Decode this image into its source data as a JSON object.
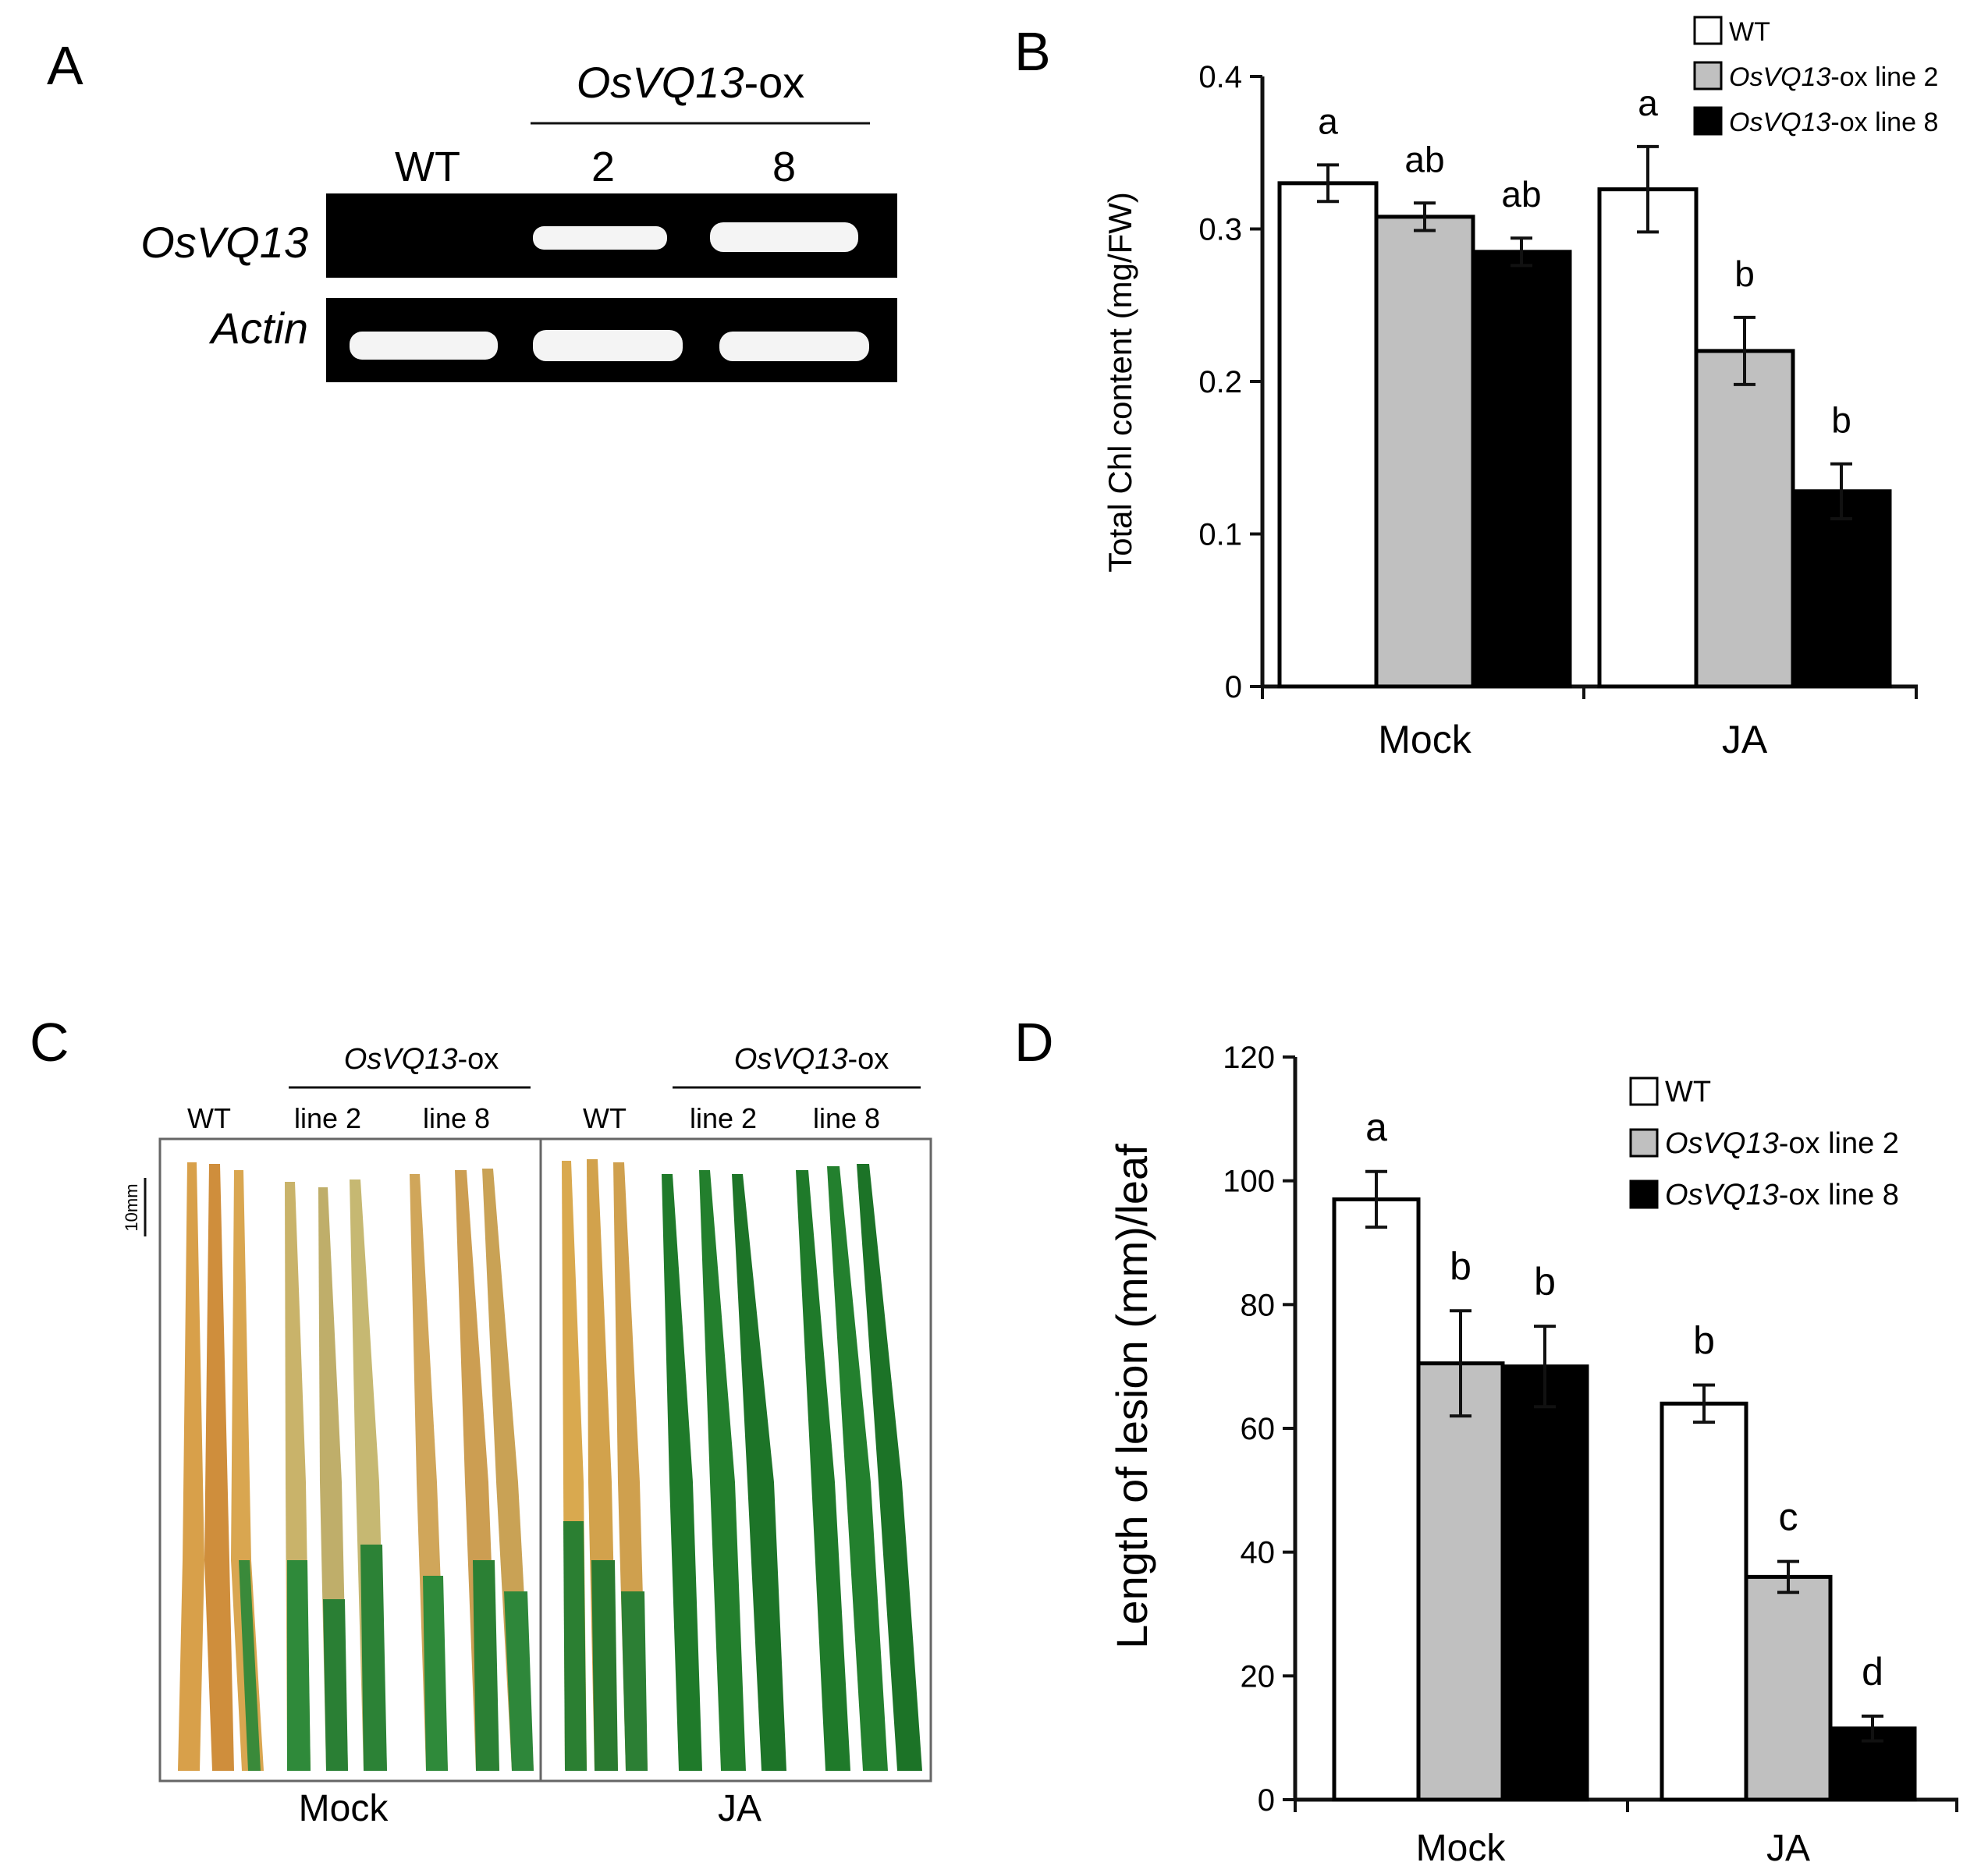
{
  "panels": {
    "A": {
      "label": "A",
      "group_label_italic": "OsVQ13",
      "group_label_suffix": "-ox",
      "lane_labels": [
        "WT",
        "2",
        "8"
      ],
      "row_labels": [
        "OsVQ13",
        "Actin"
      ]
    },
    "C": {
      "label": "C",
      "group_label_italic": "OsVQ13",
      "group_label_suffix": "-ox",
      "lane_labels_left": [
        "WT",
        "line 2",
        "line 8"
      ],
      "lane_labels_right": [
        "WT",
        "line 2",
        "line 8"
      ],
      "scale_label": "10mm",
      "bottom_labels": [
        "Mock",
        "JA"
      ]
    }
  },
  "colors": {
    "wt": "#ffffff",
    "line2": "#c0c0c0",
    "line8": "#000000",
    "gel_bg": "#000000",
    "band": "#f4f4f4",
    "leaf_green": "#1f7a2a",
    "leaf_yellow": "#d8a04a"
  },
  "chart_data": [
    {
      "panel": "B",
      "type": "bar",
      "categories": [
        "Mock",
        "JA"
      ],
      "series": [
        {
          "name": "WT",
          "name_italic": "",
          "name_suffix": "WT",
          "values": [
            0.33,
            0.326
          ],
          "errors": [
            0.012,
            0.028
          ],
          "letters": [
            "a",
            "a"
          ]
        },
        {
          "name": "OsVQ13-ox line 2",
          "name_italic": "OsVQ13",
          "name_suffix": "-ox line 2",
          "values": [
            0.308,
            0.22
          ],
          "errors": [
            0.009,
            0.022
          ],
          "letters": [
            "ab",
            "b"
          ]
        },
        {
          "name": "OsVQ13-ox line 8",
          "name_italic": "OsVQ13",
          "name_suffix": "-ox line 8",
          "values": [
            0.285,
            0.128
          ],
          "errors": [
            0.009,
            0.018
          ],
          "letters": [
            "ab",
            "b"
          ]
        }
      ],
      "ylabel": "Total Chl content (mg/FW)",
      "ylim": [
        0,
        0.4
      ],
      "yticks": [
        "0",
        "0.1",
        "0.2",
        "0.3",
        "0.4"
      ],
      "legend": "top-right"
    },
    {
      "panel": "D",
      "type": "bar",
      "categories": [
        "Mock",
        "JA"
      ],
      "series": [
        {
          "name": "WT",
          "name_italic": "",
          "name_suffix": "WT",
          "values": [
            97,
            64
          ],
          "errors": [
            4.5,
            3
          ],
          "letters": [
            "a",
            "b"
          ]
        },
        {
          "name": "OsVQ13-ox line 2",
          "name_italic": "OsVQ13",
          "name_suffix": "-ox line 2",
          "values": [
            70.5,
            36
          ],
          "errors": [
            8.5,
            2.5
          ],
          "letters": [
            "b",
            "c"
          ]
        },
        {
          "name": "OsVQ13-ox line 8",
          "name_italic": "OsVQ13",
          "name_suffix": "-ox line 8",
          "values": [
            70,
            11.5
          ],
          "errors": [
            6.5,
            2
          ],
          "letters": [
            "b",
            "d"
          ]
        }
      ],
      "ylabel": "Length of lesion (mm)/leaf",
      "ylim": [
        0,
        120
      ],
      "yticks": [
        "0",
        "20",
        "40",
        "60",
        "80",
        "100",
        "120"
      ],
      "legend": "top-right"
    }
  ]
}
